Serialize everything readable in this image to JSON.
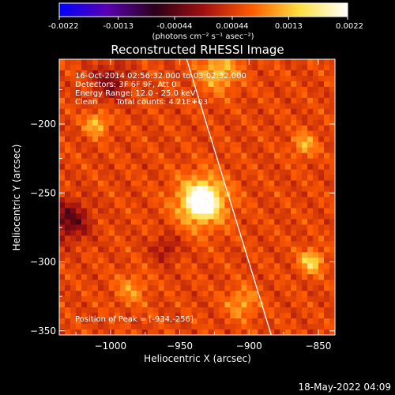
{
  "chart_data": {
    "type": "heatmap",
    "title": "Reconstructed RHESSI Image",
    "xlabel": "Heliocentric X (arcsec)",
    "ylabel": "Heliocentric Y (arcsec)",
    "xlim": [
      -1037,
      -838
    ],
    "ylim": [
      -353,
      -153
    ],
    "xticks": [
      -1000,
      -950,
      -900,
      -850
    ],
    "yticks": [
      -200,
      -250,
      -300,
      -350
    ],
    "colorbar": {
      "min": -0.0022,
      "max": 0.0022,
      "ticks": [
        "-0.0022",
        "-0.0013",
        "-0.00044",
        "0.00044",
        "0.0013",
        "0.0022"
      ],
      "unit_label": "(photons cm⁻² s⁻¹ asec⁻²)",
      "colormap": [
        "#0000ff",
        "#5a00b0",
        "#2a0018",
        "#a01010",
        "#ff5a00",
        "#ffe040",
        "#ffffff"
      ]
    },
    "annotations": {
      "time_range": "16-Oct-2014 02:56:32.000 to 03:02:32.000",
      "detectors": "Detectors: 3F 6F 9F, Att 0",
      "energy_range": "Energy Range: 12.0 - 25.0 keV",
      "clean": "Clean",
      "total_counts": "Total counts: 4.21E+03",
      "peak": "Position of Peak = [-934,-256]"
    },
    "peak": {
      "x": -934,
      "y": -256
    },
    "limb_line": {
      "x1": -945,
      "y1": -153,
      "x2": -884,
      "y2": -353
    },
    "sources": [
      {
        "x": -934,
        "y": -256,
        "value": 0.0022,
        "sigma": 6
      },
      {
        "x": -934,
        "y": -256,
        "value": 0.0012,
        "sigma": 13
      },
      {
        "x": -922,
        "y": -162,
        "value": 0.0008,
        "sigma": 10
      },
      {
        "x": -1010,
        "y": -200,
        "value": 0.0008,
        "sigma": 6
      },
      {
        "x": -855,
        "y": -300,
        "value": 0.001,
        "sigma": 6
      },
      {
        "x": -860,
        "y": -215,
        "value": 0.0007,
        "sigma": 6
      },
      {
        "x": -905,
        "y": -330,
        "value": 0.0006,
        "sigma": 8
      },
      {
        "x": -985,
        "y": -320,
        "value": 0.0005,
        "sigma": 8
      },
      {
        "x": -1030,
        "y": -270,
        "value": -0.0009,
        "sigma": 10
      },
      {
        "x": -1000,
        "y": -170,
        "value": -0.0007,
        "sigma": 9
      },
      {
        "x": -960,
        "y": -290,
        "value": -0.0005,
        "sigma": 7
      }
    ]
  },
  "footer": {
    "date": "18-May-2022 04:09"
  }
}
